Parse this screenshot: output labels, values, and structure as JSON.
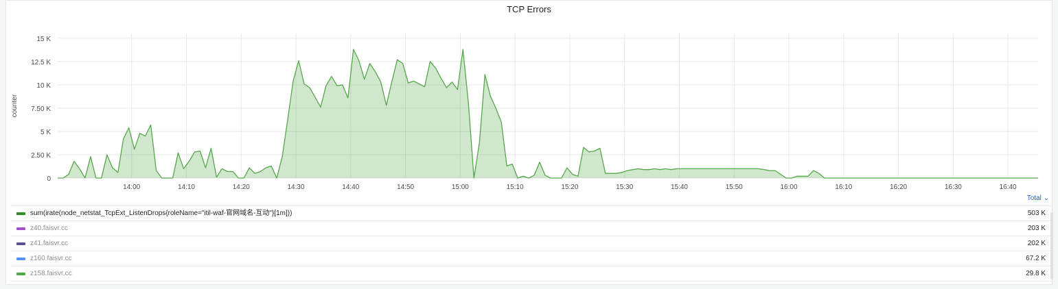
{
  "panel": {
    "title": "TCP Errors"
  },
  "legend": {
    "total_label": "Total",
    "items": [
      {
        "name": "sum(irate(node_netstat_TcpExt_ListenDrops{roleName=\"itil-waf-官网域名-互动\"}[1m]))",
        "value": "503 K",
        "color": "#37872d",
        "dimmed": false
      },
      {
        "name": "z40.faisvr.cc",
        "value": "203 K",
        "color": "#a352cc",
        "dimmed": true
      },
      {
        "name": "z41.faisvr.cc",
        "value": "202 K",
        "color": "#614d93",
        "dimmed": true
      },
      {
        "name": "z160.faisvr.cc",
        "value": "67.2 K",
        "color": "#5794f2",
        "dimmed": true
      },
      {
        "name": "z158.faisvr.cc",
        "value": "29.8 K",
        "color": "#56a64b",
        "dimmed": true
      }
    ]
  },
  "chart_data": {
    "type": "area",
    "title": "TCP Errors",
    "ylabel": "counter",
    "ylim": [
      0,
      15500
    ],
    "yticks": [
      0,
      2500,
      5000,
      7500,
      10000,
      12500,
      15000
    ],
    "ytick_labels": [
      "0",
      "2.50 K",
      "5 K",
      "7.50 K",
      "10 K",
      "12.5 K",
      "15 K"
    ],
    "xlim_minutes": [
      826.5,
      1005.5
    ],
    "xticks_minutes": [
      840,
      850,
      860,
      870,
      880,
      890,
      900,
      910,
      920,
      930,
      940,
      950,
      960,
      970,
      980,
      990,
      1000
    ],
    "xtick_labels": [
      "14:00",
      "14:10",
      "14:20",
      "14:30",
      "14:40",
      "14:50",
      "15:00",
      "15:10",
      "15:20",
      "15:30",
      "15:40",
      "15:50",
      "16:00",
      "16:10",
      "16:20",
      "16:30",
      "16:40"
    ],
    "grid": true,
    "series": [
      {
        "name": "sum(irate(node_netstat_TcpExt_ListenDrops{roleName=\"itil-waf-官网域名-互动\"}[1m]))",
        "color": "#56a64b",
        "points": [
          [
            826.5,
            0
          ],
          [
            827.5,
            0
          ],
          [
            828.5,
            400
          ],
          [
            829.5,
            1800
          ],
          [
            830.5,
            1000
          ],
          [
            831.5,
            0
          ],
          [
            832.5,
            2300
          ],
          [
            833.5,
            0
          ],
          [
            834.5,
            0
          ],
          [
            835.5,
            2500
          ],
          [
            836.5,
            1100
          ],
          [
            837.5,
            600
          ],
          [
            838.5,
            4200
          ],
          [
            839.5,
            5400
          ],
          [
            840.5,
            3100
          ],
          [
            841.5,
            4800
          ],
          [
            842.5,
            4500
          ],
          [
            843.5,
            5700
          ],
          [
            844.5,
            800
          ],
          [
            845.5,
            0
          ],
          [
            846.5,
            0
          ],
          [
            847.5,
            0
          ],
          [
            848.5,
            2700
          ],
          [
            849.5,
            1000
          ],
          [
            850.5,
            1800
          ],
          [
            851.5,
            2800
          ],
          [
            852.5,
            2900
          ],
          [
            853.5,
            1100
          ],
          [
            854.5,
            3200
          ],
          [
            855.5,
            100
          ],
          [
            856.5,
            1000
          ],
          [
            857.5,
            700
          ],
          [
            858.5,
            700
          ],
          [
            859.5,
            0
          ],
          [
            860.5,
            0
          ],
          [
            861.5,
            1100
          ],
          [
            862.5,
            500
          ],
          [
            863.5,
            700
          ],
          [
            864.5,
            1100
          ],
          [
            865.5,
            1300
          ],
          [
            866.5,
            0
          ],
          [
            867.5,
            2300
          ],
          [
            868.5,
            6300
          ],
          [
            869.5,
            10400
          ],
          [
            870.5,
            12600
          ],
          [
            871.5,
            10100
          ],
          [
            872.5,
            9700
          ],
          [
            873.5,
            8700
          ],
          [
            874.5,
            7600
          ],
          [
            875.5,
            9900
          ],
          [
            876.5,
            10900
          ],
          [
            877.5,
            9900
          ],
          [
            878.5,
            10000
          ],
          [
            879.5,
            8600
          ],
          [
            880.5,
            13800
          ],
          [
            881.5,
            12600
          ],
          [
            882.5,
            10600
          ],
          [
            883.5,
            12300
          ],
          [
            884.5,
            11400
          ],
          [
            885.5,
            10300
          ],
          [
            886.5,
            7800
          ],
          [
            887.5,
            10300
          ],
          [
            888.5,
            12700
          ],
          [
            889.5,
            12300
          ],
          [
            890.5,
            10200
          ],
          [
            891.5,
            10400
          ],
          [
            892.5,
            10100
          ],
          [
            893.5,
            9800
          ],
          [
            894.5,
            12500
          ],
          [
            895.5,
            11800
          ],
          [
            896.5,
            10700
          ],
          [
            897.5,
            9700
          ],
          [
            898.5,
            10300
          ],
          [
            899.5,
            9500
          ],
          [
            900.5,
            13800
          ],
          [
            901.5,
            8000
          ],
          [
            902.5,
            0
          ],
          [
            903.5,
            3800
          ],
          [
            904.5,
            11100
          ],
          [
            905.5,
            8800
          ],
          [
            906.5,
            7500
          ],
          [
            907.5,
            6000
          ],
          [
            908.5,
            1300
          ],
          [
            909.5,
            1500
          ],
          [
            910.5,
            0
          ],
          [
            911.5,
            200
          ],
          [
            912.5,
            0
          ],
          [
            913.5,
            300
          ],
          [
            914.5,
            1700
          ],
          [
            915.5,
            300
          ],
          [
            916.5,
            0
          ],
          [
            917.5,
            0
          ],
          [
            918.5,
            0
          ],
          [
            919.5,
            1100
          ],
          [
            920.5,
            400
          ],
          [
            921.5,
            200
          ],
          [
            922.5,
            3300
          ],
          [
            923.5,
            2800
          ],
          [
            924.5,
            2900
          ],
          [
            925.5,
            3200
          ],
          [
            926.5,
            500
          ],
          [
            927.5,
            500
          ],
          [
            928.5,
            500
          ],
          [
            929.5,
            600
          ],
          [
            930.5,
            800
          ],
          [
            931.5,
            900
          ],
          [
            932.5,
            1000
          ],
          [
            933.5,
            900
          ],
          [
            934.5,
            900
          ],
          [
            935.5,
            1000
          ],
          [
            936.5,
            900
          ],
          [
            937.5,
            1000
          ],
          [
            938.5,
            900
          ],
          [
            939.5,
            1000
          ],
          [
            940.5,
            1000
          ],
          [
            942.5,
            1000
          ],
          [
            944.5,
            1000
          ],
          [
            946.5,
            1000
          ],
          [
            948.5,
            1000
          ],
          [
            950.5,
            1000
          ],
          [
            952.5,
            1000
          ],
          [
            954.5,
            1000
          ],
          [
            955.5,
            900
          ],
          [
            956.5,
            800
          ],
          [
            957.5,
            800
          ],
          [
            958.5,
            400
          ],
          [
            959.5,
            0
          ],
          [
            960.5,
            0
          ],
          [
            961.5,
            200
          ],
          [
            962.5,
            200
          ],
          [
            963.5,
            200
          ],
          [
            964.5,
            800
          ],
          [
            965.5,
            500
          ],
          [
            966.5,
            0
          ],
          [
            970,
            0
          ],
          [
            980,
            0
          ],
          [
            990,
            0
          ],
          [
            1000,
            0
          ],
          [
            1005.5,
            0
          ]
        ]
      }
    ]
  }
}
